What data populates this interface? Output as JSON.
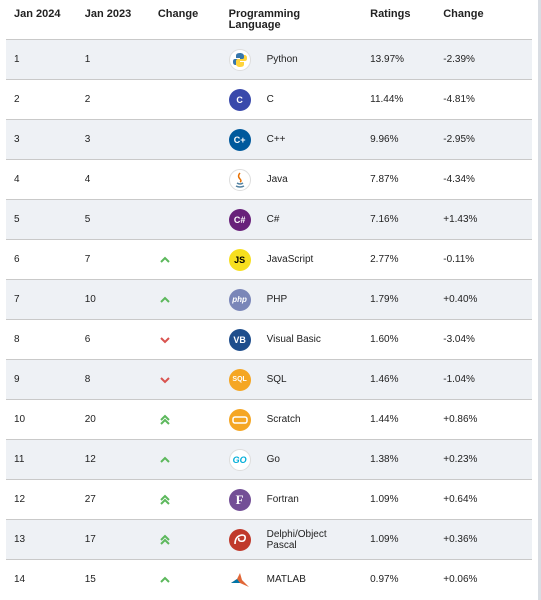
{
  "headers": [
    "Jan 2024",
    "Jan 2023",
    "Change",
    "Programming Language",
    "Ratings",
    "Change"
  ],
  "rows": [
    {
      "rank": "1",
      "prev": "1",
      "change": "none",
      "icon": "python-logo-icon",
      "lang": "Python",
      "rating": "13.97%",
      "delta": "-2.39%"
    },
    {
      "rank": "2",
      "prev": "2",
      "change": "none",
      "icon": "c-logo-icon",
      "lang": "C",
      "rating": "11.44%",
      "delta": "-4.81%"
    },
    {
      "rank": "3",
      "prev": "3",
      "change": "none",
      "icon": "cpp-logo-icon",
      "lang": "C++",
      "rating": "9.96%",
      "delta": "-2.95%"
    },
    {
      "rank": "4",
      "prev": "4",
      "change": "none",
      "icon": "java-logo-icon",
      "lang": "Java",
      "rating": "7.87%",
      "delta": "-4.34%"
    },
    {
      "rank": "5",
      "prev": "5",
      "change": "none",
      "icon": "csharp-logo-icon",
      "lang": "C#",
      "rating": "7.16%",
      "delta": "+1.43%"
    },
    {
      "rank": "6",
      "prev": "7",
      "change": "up",
      "icon": "javascript-logo-icon",
      "lang": "JavaScript",
      "rating": "2.77%",
      "delta": "-0.11%"
    },
    {
      "rank": "7",
      "prev": "10",
      "change": "up",
      "icon": "php-logo-icon",
      "lang": "PHP",
      "rating": "1.79%",
      "delta": "+0.40%"
    },
    {
      "rank": "8",
      "prev": "6",
      "change": "down",
      "icon": "visual-basic-logo-icon",
      "lang": "Visual Basic",
      "rating": "1.60%",
      "delta": "-3.04%"
    },
    {
      "rank": "9",
      "prev": "8",
      "change": "down",
      "icon": "sql-logo-icon",
      "lang": "SQL",
      "rating": "1.46%",
      "delta": "-1.04%"
    },
    {
      "rank": "10",
      "prev": "20",
      "change": "upup",
      "icon": "scratch-logo-icon",
      "lang": "Scratch",
      "rating": "1.44%",
      "delta": "+0.86%"
    },
    {
      "rank": "11",
      "prev": "12",
      "change": "up",
      "icon": "go-logo-icon",
      "lang": "Go",
      "rating": "1.38%",
      "delta": "+0.23%"
    },
    {
      "rank": "12",
      "prev": "27",
      "change": "upup",
      "icon": "fortran-logo-icon",
      "lang": "Fortran",
      "rating": "1.09%",
      "delta": "+0.64%"
    },
    {
      "rank": "13",
      "prev": "17",
      "change": "upup",
      "icon": "delphi-logo-icon",
      "lang": "Delphi/Object Pascal",
      "rating": "1.09%",
      "delta": "+0.36%"
    },
    {
      "rank": "14",
      "prev": "15",
      "change": "up",
      "icon": "matlab-logo-icon",
      "lang": "MATLAB",
      "rating": "0.97%",
      "delta": "+0.06%"
    }
  ],
  "logo_text": {
    "c-logo-icon": "C",
    "cpp-logo-icon": "C+",
    "csharp-logo-icon": "C#",
    "javascript-logo-icon": "JS",
    "php-logo-icon": "php",
    "visual-basic-logo-icon": "VB",
    "sql-logo-icon": "SQL",
    "fortran-logo-icon": "F",
    "go-logo-icon": "GO"
  },
  "colors": {
    "arrow_up": "#5cb85c",
    "arrow_down": "#d9534f",
    "row_alt": "#eef1f5"
  }
}
